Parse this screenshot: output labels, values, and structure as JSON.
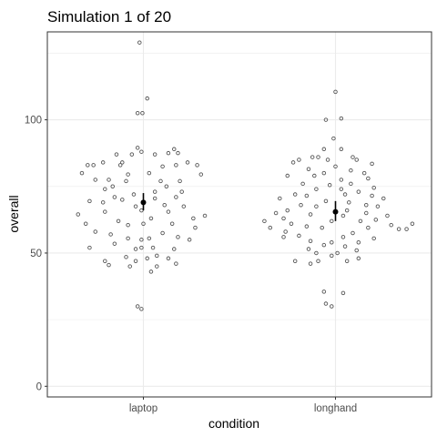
{
  "chart_data": {
    "type": "scatter",
    "title": "Simulation 1 of 20",
    "xlabel": "condition",
    "ylabel": "overall",
    "categories": [
      "laptop",
      "longhand"
    ],
    "ylim": [
      -4,
      133
    ],
    "yticks": [
      0,
      50,
      100
    ],
    "grid": true,
    "colors": {
      "point": "#555555",
      "summary": "#000000",
      "grid": "#ebebeb",
      "panel_border": "#333333"
    },
    "series": [
      {
        "category": "laptop",
        "mean": 69,
        "ci": [
          66,
          72.5
        ],
        "points": [
          {
            "offset": -0.02,
            "value": 129
          },
          {
            "offset": 0.02,
            "value": 108
          },
          {
            "offset": -0.03,
            "value": 102.5
          },
          {
            "offset": -0.005,
            "value": 102.5
          },
          {
            "offset": -0.03,
            "value": 89.5
          },
          {
            "offset": 0.16,
            "value": 89
          },
          {
            "offset": -0.01,
            "value": 88
          },
          {
            "offset": 0.13,
            "value": 87.5
          },
          {
            "offset": 0.18,
            "value": 87.5
          },
          {
            "offset": -0.14,
            "value": 87
          },
          {
            "offset": -0.06,
            "value": 87
          },
          {
            "offset": 0.06,
            "value": 87
          },
          {
            "offset": -0.21,
            "value": 84
          },
          {
            "offset": -0.11,
            "value": 84
          },
          {
            "offset": 0.23,
            "value": 84
          },
          {
            "offset": -0.29,
            "value": 83
          },
          {
            "offset": -0.26,
            "value": 83
          },
          {
            "offset": -0.12,
            "value": 83
          },
          {
            "offset": 0.17,
            "value": 83
          },
          {
            "offset": 0.28,
            "value": 83
          },
          {
            "offset": 0.1,
            "value": 82.5
          },
          {
            "offset": 0.03,
            "value": 80
          },
          {
            "offset": -0.08,
            "value": 79.5
          },
          {
            "offset": -0.32,
            "value": 80
          },
          {
            "offset": 0.3,
            "value": 79.5
          },
          {
            "offset": -0.25,
            "value": 77.5
          },
          {
            "offset": -0.18,
            "value": 77.5
          },
          {
            "offset": -0.09,
            "value": 77
          },
          {
            "offset": 0.09,
            "value": 77
          },
          {
            "offset": 0.19,
            "value": 77
          },
          {
            "offset": -0.16,
            "value": 75
          },
          {
            "offset": 0.12,
            "value": 75
          },
          {
            "offset": -0.2,
            "value": 74
          },
          {
            "offset": 0.06,
            "value": 73
          },
          {
            "offset": 0.2,
            "value": 73
          },
          {
            "offset": -0.05,
            "value": 72
          },
          {
            "offset": -0.15,
            "value": 71
          },
          {
            "offset": 0.17,
            "value": 71
          },
          {
            "offset": -0.28,
            "value": 69.5
          },
          {
            "offset": -0.11,
            "value": 70
          },
          {
            "offset": 0.06,
            "value": 70.5
          },
          {
            "offset": -0.21,
            "value": 69
          },
          {
            "offset": 0.11,
            "value": 68
          },
          {
            "offset": -0.04,
            "value": 67.5
          },
          {
            "offset": 0.21,
            "value": 67.5
          },
          {
            "offset": -0.2,
            "value": 65.5
          },
          {
            "offset": -0.01,
            "value": 66
          },
          {
            "offset": 0.13,
            "value": 65.5
          },
          {
            "offset": -0.34,
            "value": 64.5
          },
          {
            "offset": 0.32,
            "value": 64
          },
          {
            "offset": 0.04,
            "value": 63
          },
          {
            "offset": 0.26,
            "value": 63
          },
          {
            "offset": -0.13,
            "value": 62
          },
          {
            "offset": -0.3,
            "value": 61
          },
          {
            "offset": 0.0,
            "value": 61
          },
          {
            "offset": 0.15,
            "value": 61
          },
          {
            "offset": -0.08,
            "value": 60.5
          },
          {
            "offset": 0.27,
            "value": 59.5
          },
          {
            "offset": -0.25,
            "value": 58
          },
          {
            "offset": 0.1,
            "value": 57.5
          },
          {
            "offset": -0.17,
            "value": 57
          },
          {
            "offset": 0.18,
            "value": 56
          },
          {
            "offset": -0.08,
            "value": 55.5
          },
          {
            "offset": 0.03,
            "value": 55.5
          },
          {
            "offset": -0.01,
            "value": 55
          },
          {
            "offset": 0.24,
            "value": 55
          },
          {
            "offset": -0.15,
            "value": 53.5
          },
          {
            "offset": -0.28,
            "value": 52
          },
          {
            "offset": 0.05,
            "value": 52
          },
          {
            "offset": -0.01,
            "value": 52
          },
          {
            "offset": -0.04,
            "value": 51.5
          },
          {
            "offset": 0.16,
            "value": 51.5
          },
          {
            "offset": 0.07,
            "value": 49
          },
          {
            "offset": -0.09,
            "value": 48.5
          },
          {
            "offset": 0.02,
            "value": 48
          },
          {
            "offset": 0.13,
            "value": 48
          },
          {
            "offset": -0.2,
            "value": 47
          },
          {
            "offset": -0.04,
            "value": 47
          },
          {
            "offset": 0.17,
            "value": 46
          },
          {
            "offset": -0.18,
            "value": 45.5
          },
          {
            "offset": -0.07,
            "value": 45
          },
          {
            "offset": 0.07,
            "value": 45
          },
          {
            "offset": 0.04,
            "value": 43
          },
          {
            "offset": -0.03,
            "value": 30
          },
          {
            "offset": -0.01,
            "value": 29
          }
        ]
      },
      {
        "category": "longhand",
        "mean": 65.5,
        "ci": [
          62,
          69.5
        ],
        "points": [
          {
            "offset": 0.0,
            "value": 110.5
          },
          {
            "offset": -0.05,
            "value": 100
          },
          {
            "offset": 0.03,
            "value": 100.5
          },
          {
            "offset": -0.01,
            "value": 93
          },
          {
            "offset": -0.06,
            "value": 89
          },
          {
            "offset": 0.03,
            "value": 89
          },
          {
            "offset": -0.12,
            "value": 86
          },
          {
            "offset": -0.09,
            "value": 86
          },
          {
            "offset": 0.09,
            "value": 86
          },
          {
            "offset": -0.19,
            "value": 85
          },
          {
            "offset": -0.04,
            "value": 85
          },
          {
            "offset": 0.11,
            "value": 85
          },
          {
            "offset": -0.22,
            "value": 84
          },
          {
            "offset": 0.19,
            "value": 83.5
          },
          {
            "offset": 0.0,
            "value": 82.5
          },
          {
            "offset": -0.14,
            "value": 81.5
          },
          {
            "offset": 0.08,
            "value": 81
          },
          {
            "offset": -0.06,
            "value": 80
          },
          {
            "offset": 0.15,
            "value": 80
          },
          {
            "offset": -0.25,
            "value": 79
          },
          {
            "offset": -0.11,
            "value": 79
          },
          {
            "offset": 0.17,
            "value": 78
          },
          {
            "offset": 0.03,
            "value": 77.5
          },
          {
            "offset": -0.17,
            "value": 76
          },
          {
            "offset": 0.08,
            "value": 76
          },
          {
            "offset": -0.03,
            "value": 75.5
          },
          {
            "offset": 0.2,
            "value": 74.5
          },
          {
            "offset": -0.1,
            "value": 74
          },
          {
            "offset": 0.03,
            "value": 74
          },
          {
            "offset": 0.12,
            "value": 73
          },
          {
            "offset": -0.21,
            "value": 72
          },
          {
            "offset": -0.15,
            "value": 71.5
          },
          {
            "offset": 0.05,
            "value": 72
          },
          {
            "offset": 0.19,
            "value": 71.5
          },
          {
            "offset": -0.29,
            "value": 70.5
          },
          {
            "offset": 0.25,
            "value": 70.5
          },
          {
            "offset": -0.05,
            "value": 69.5
          },
          {
            "offset": 0.07,
            "value": 69
          },
          {
            "offset": -0.18,
            "value": 68
          },
          {
            "offset": 0.16,
            "value": 68
          },
          {
            "offset": -0.1,
            "value": 67.5
          },
          {
            "offset": 0.22,
            "value": 67.5
          },
          {
            "offset": -0.25,
            "value": 66
          },
          {
            "offset": 0.06,
            "value": 66
          },
          {
            "offset": -0.31,
            "value": 65
          },
          {
            "offset": 0.16,
            "value": 65
          },
          {
            "offset": -0.13,
            "value": 64.5
          },
          {
            "offset": 0.04,
            "value": 64
          },
          {
            "offset": 0.27,
            "value": 64
          },
          {
            "offset": -0.27,
            "value": 63
          },
          {
            "offset": 0.21,
            "value": 62.5
          },
          {
            "offset": -0.37,
            "value": 62
          },
          {
            "offset": -0.02,
            "value": 62
          },
          {
            "offset": 0.13,
            "value": 62
          },
          {
            "offset": 0.4,
            "value": 61
          },
          {
            "offset": -0.23,
            "value": 61
          },
          {
            "offset": 0.29,
            "value": 60.5
          },
          {
            "offset": -0.15,
            "value": 60
          },
          {
            "offset": -0.34,
            "value": 59.5
          },
          {
            "offset": -0.07,
            "value": 59.5
          },
          {
            "offset": 0.17,
            "value": 59.5
          },
          {
            "offset": 0.33,
            "value": 59
          },
          {
            "offset": 0.37,
            "value": 59
          },
          {
            "offset": -0.26,
            "value": 58
          },
          {
            "offset": 0.09,
            "value": 57.5
          },
          {
            "offset": -0.19,
            "value": 56.5
          },
          {
            "offset": -0.27,
            "value": 56
          },
          {
            "offset": 0.04,
            "value": 56
          },
          {
            "offset": 0.2,
            "value": 55.5
          },
          {
            "offset": -0.13,
            "value": 54.5
          },
          {
            "offset": -0.02,
            "value": 54
          },
          {
            "offset": 0.12,
            "value": 54
          },
          {
            "offset": -0.06,
            "value": 53
          },
          {
            "offset": 0.05,
            "value": 52.5
          },
          {
            "offset": -0.14,
            "value": 51.5
          },
          {
            "offset": 0.11,
            "value": 51
          },
          {
            "offset": -0.1,
            "value": 50
          },
          {
            "offset": 0.01,
            "value": 50
          },
          {
            "offset": -0.02,
            "value": 49
          },
          {
            "offset": 0.12,
            "value": 48
          },
          {
            "offset": -0.21,
            "value": 47
          },
          {
            "offset": -0.09,
            "value": 47
          },
          {
            "offset": 0.06,
            "value": 47
          },
          {
            "offset": -0.13,
            "value": 46
          },
          {
            "offset": -0.06,
            "value": 35.5
          },
          {
            "offset": 0.04,
            "value": 35
          },
          {
            "offset": -0.05,
            "value": 31
          },
          {
            "offset": -0.02,
            "value": 30
          }
        ]
      }
    ]
  }
}
